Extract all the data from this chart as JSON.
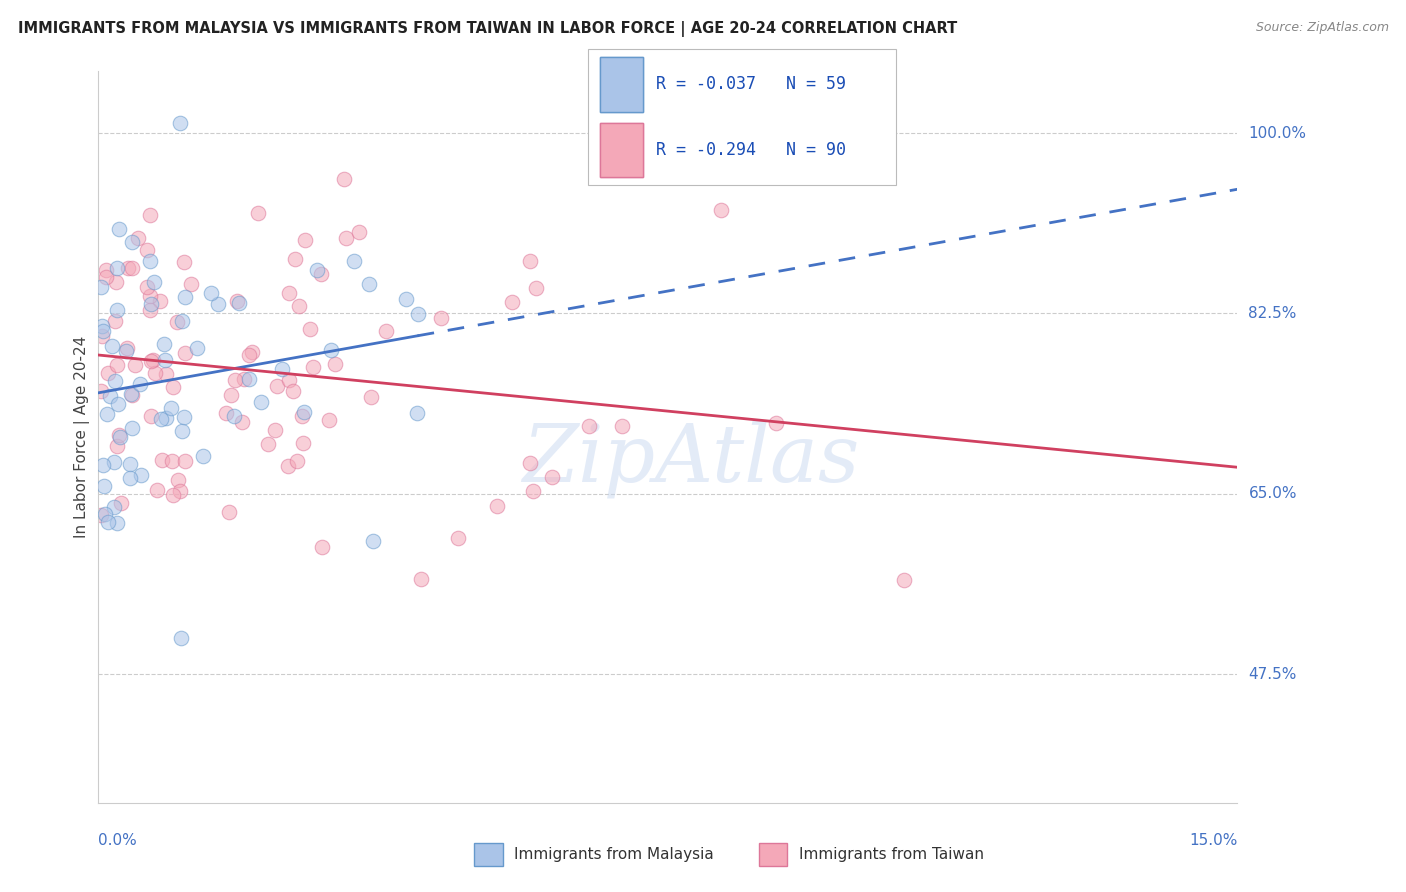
{
  "title": "IMMIGRANTS FROM MALAYSIA VS IMMIGRANTS FROM TAIWAN IN LABOR FORCE | AGE 20-24 CORRELATION CHART",
  "source": "Source: ZipAtlas.com",
  "ylabel": "In Labor Force | Age 20-24",
  "xlim": [
    0.0,
    0.15
  ],
  "ylim": [
    0.35,
    1.06
  ],
  "malaysia_fill": "#aac4e8",
  "malaysia_edge": "#6699cc",
  "taiwan_fill": "#f4a8b8",
  "taiwan_edge": "#dd7799",
  "trend_malaysia_color": "#4472c4",
  "trend_taiwan_color": "#d04060",
  "legend_line1": "R = -0.037   N = 59",
  "legend_line2": "R = -0.294   N = 90",
  "marker_size": 110,
  "alpha": 0.55,
  "grid_color": "#cccccc",
  "ytick_vals": [
    0.475,
    0.65,
    0.825,
    1.0
  ],
  "ytick_labels": [
    "47.5%",
    "65.0%",
    "82.5%",
    "100.0%"
  ],
  "watermark": "ZipAtlas",
  "watermark_color": "#c8d8f0",
  "seed": 42
}
